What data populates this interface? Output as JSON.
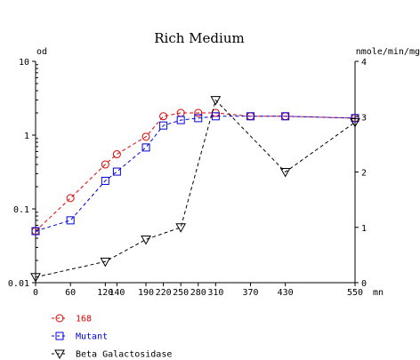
{
  "chart_data": {
    "type": "line",
    "title": "Rich Medium",
    "x_axis": {
      "unit_label": "mn",
      "range": [
        0,
        550
      ],
      "ticks": [
        0,
        60,
        120,
        140,
        190,
        220,
        250,
        280,
        310,
        370,
        430,
        550
      ]
    },
    "y_left": {
      "unit_label": "od",
      "scale": "log",
      "range": [
        0.01,
        10
      ],
      "ticks": [
        {
          "value": 0.01,
          "label": "0.01"
        },
        {
          "value": 0.1,
          "label": "0.1"
        },
        {
          "value": 1,
          "label": "1"
        },
        {
          "value": 10,
          "label": "10"
        }
      ]
    },
    "y_right": {
      "unit_label": "nmole/min/mg",
      "scale": "linear",
      "range": [
        0,
        4
      ],
      "ticks": [
        0,
        1,
        2,
        3,
        4
      ]
    },
    "series": [
      {
        "name": "168",
        "axis": "left",
        "color": "#dd0000",
        "marker": "circle",
        "x": [
          0,
          60,
          120,
          140,
          190,
          220,
          250,
          280,
          310,
          370,
          430,
          550
        ],
        "y": [
          0.05,
          0.14,
          0.4,
          0.55,
          0.95,
          1.8,
          2.0,
          2.0,
          2.0,
          1.8,
          1.8,
          1.7
        ]
      },
      {
        "name": "Mutant",
        "axis": "left",
        "color": "#0000dd",
        "marker": "square",
        "x": [
          0,
          60,
          120,
          140,
          190,
          220,
          250,
          280,
          310,
          370,
          430,
          550
        ],
        "y": [
          0.05,
          0.07,
          0.24,
          0.32,
          0.68,
          1.35,
          1.6,
          1.7,
          1.8,
          1.8,
          1.8,
          1.7
        ]
      },
      {
        "name": "Beta Galactosidase",
        "axis": "right",
        "color": "#000000",
        "marker": "triangle-down",
        "x": [
          0,
          120,
          190,
          250,
          310,
          430,
          550
        ],
        "y": [
          0.1,
          0.38,
          0.78,
          1.0,
          3.3,
          2.0,
          2.9
        ]
      }
    ],
    "legend_position": "bottom-left",
    "grid": false
  }
}
